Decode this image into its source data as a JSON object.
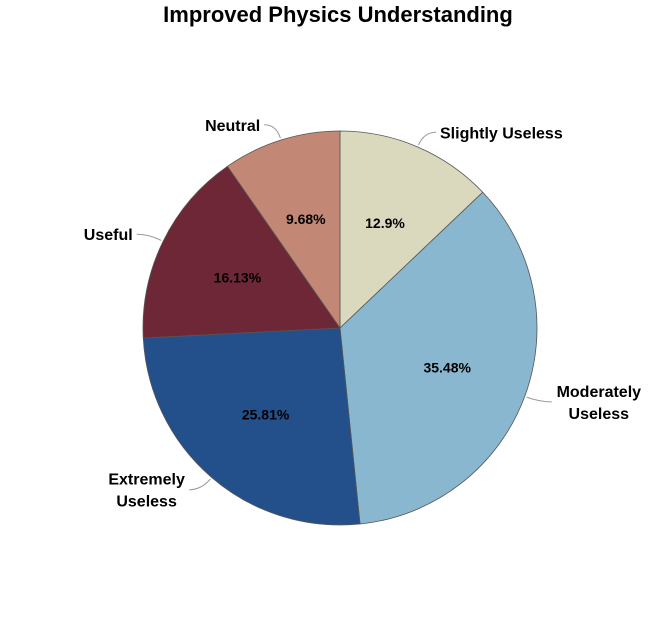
{
  "chart_data": {
    "type": "pie",
    "title": "Improved Physics Understanding",
    "start_angle_deg": 90,
    "direction": "clockwise",
    "slices": [
      {
        "label": "Slightly Useless",
        "label_lines": [
          "Slightly Useless"
        ],
        "value": 12.9,
        "display": "12.9%",
        "color": "#dbd9bd"
      },
      {
        "label": "Moderately Useless",
        "label_lines": [
          "Moderately",
          "Useless"
        ],
        "value": 35.48,
        "display": "35.48%",
        "color": "#88b7cf"
      },
      {
        "label": "Extremely Useless",
        "label_lines": [
          "Extremely",
          "Useless"
        ],
        "value": 25.81,
        "display": "25.81%",
        "color": "#23508a"
      },
      {
        "label": "Useful",
        "label_lines": [
          "Useful"
        ],
        "value": 16.13,
        "display": "16.13%",
        "color": "#6e2737"
      },
      {
        "label": "Neutral",
        "label_lines": [
          "Neutral"
        ],
        "value": 9.68,
        "display": "9.68%",
        "color": "#c38776"
      }
    ]
  }
}
